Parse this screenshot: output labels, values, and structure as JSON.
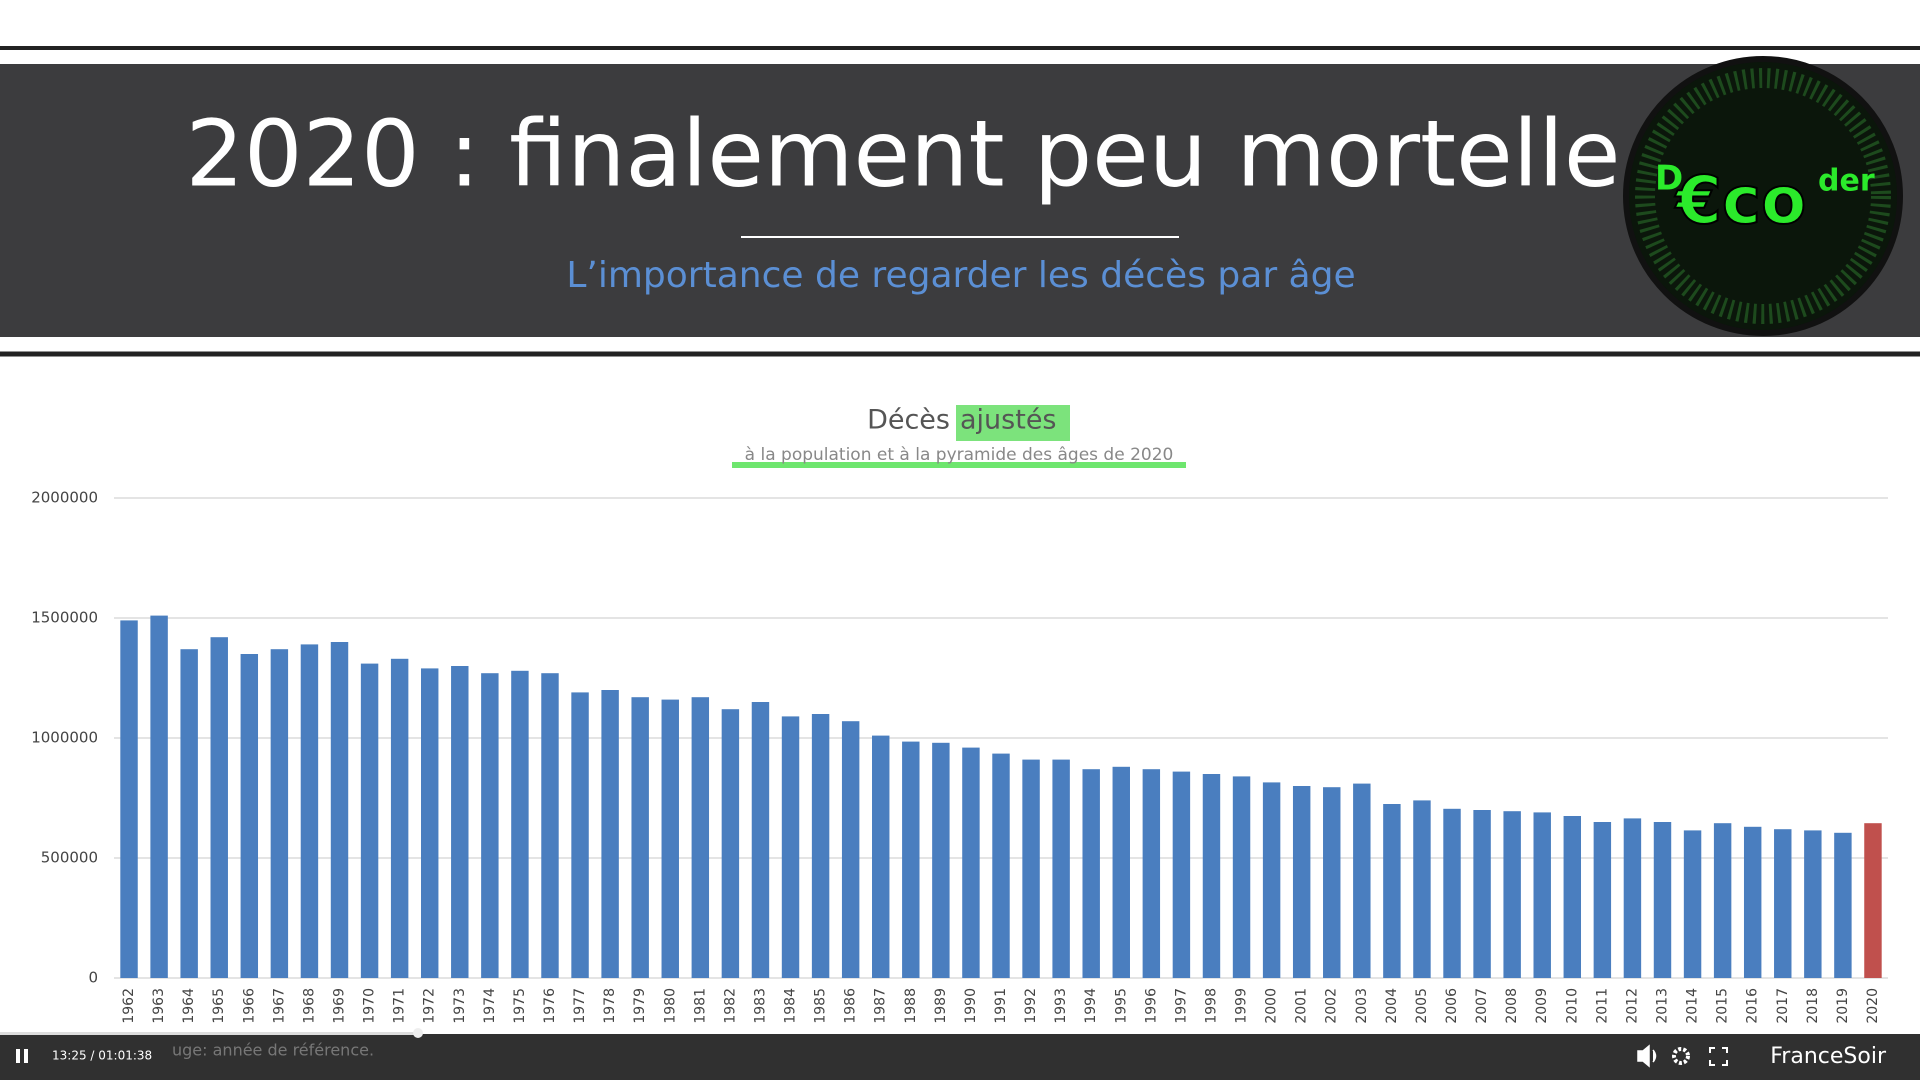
{
  "header": {
    "title": "2020 : finalement peu mortelle",
    "subtitle": "L’importance de regarder les décès par âge"
  },
  "logo": {
    "parts": [
      "D",
      "€co",
      "der"
    ]
  },
  "chart_data": {
    "type": "bar",
    "title_parts": [
      "Décès",
      "ajustés"
    ],
    "subtitle": "à la population et à la pyramide des âges de 2020",
    "footnote": "uge: année de référence.",
    "categories": [
      "1962",
      "1963",
      "1964",
      "1965",
      "1966",
      "1967",
      "1968",
      "1969",
      "1970",
      "1971",
      "1972",
      "1973",
      "1974",
      "1975",
      "1976",
      "1977",
      "1978",
      "1979",
      "1980",
      "1981",
      "1982",
      "1983",
      "1984",
      "1985",
      "1986",
      "1987",
      "1988",
      "1989",
      "1990",
      "1991",
      "1992",
      "1993",
      "1994",
      "1995",
      "1996",
      "1997",
      "1998",
      "1999",
      "2000",
      "2001",
      "2002",
      "2003",
      "2004",
      "2005",
      "2006",
      "2007",
      "2008",
      "2009",
      "2010",
      "2011",
      "2012",
      "2013",
      "2014",
      "2015",
      "2016",
      "2017",
      "2018",
      "2019",
      "2020"
    ],
    "values": [
      1490000,
      1510000,
      1370000,
      1420000,
      1350000,
      1370000,
      1390000,
      1400000,
      1310000,
      1330000,
      1290000,
      1300000,
      1270000,
      1280000,
      1270000,
      1190000,
      1200000,
      1170000,
      1160000,
      1170000,
      1120000,
      1150000,
      1090000,
      1100000,
      1070000,
      1010000,
      985000,
      980000,
      960000,
      935000,
      910000,
      910000,
      870000,
      880000,
      870000,
      860000,
      850000,
      840000,
      815000,
      800000,
      795000,
      810000,
      725000,
      740000,
      705000,
      700000,
      695000,
      690000,
      675000,
      650000,
      665000,
      650000,
      615000,
      645000,
      630000,
      620000,
      615000,
      605000,
      645000
    ],
    "colors": [
      "#4a7ebf",
      "#4a7ebf",
      "#4a7ebf",
      "#4a7ebf",
      "#4a7ebf",
      "#4a7ebf",
      "#4a7ebf",
      "#4a7ebf",
      "#4a7ebf",
      "#4a7ebf",
      "#4a7ebf",
      "#4a7ebf",
      "#4a7ebf",
      "#4a7ebf",
      "#4a7ebf",
      "#4a7ebf",
      "#4a7ebf",
      "#4a7ebf",
      "#4a7ebf",
      "#4a7ebf",
      "#4a7ebf",
      "#4a7ebf",
      "#4a7ebf",
      "#4a7ebf",
      "#4a7ebf",
      "#4a7ebf",
      "#4a7ebf",
      "#4a7ebf",
      "#4a7ebf",
      "#4a7ebf",
      "#4a7ebf",
      "#4a7ebf",
      "#4a7ebf",
      "#4a7ebf",
      "#4a7ebf",
      "#4a7ebf",
      "#4a7ebf",
      "#4a7ebf",
      "#4a7ebf",
      "#4a7ebf",
      "#4a7ebf",
      "#4a7ebf",
      "#4a7ebf",
      "#4a7ebf",
      "#4a7ebf",
      "#4a7ebf",
      "#4a7ebf",
      "#4a7ebf",
      "#4a7ebf",
      "#4a7ebf",
      "#4a7ebf",
      "#4a7ebf",
      "#4a7ebf",
      "#4a7ebf",
      "#4a7ebf",
      "#4a7ebf",
      "#4a7ebf",
      "#4a7ebf",
      "#c0504d"
    ],
    "ylim": [
      0,
      2000000
    ],
    "yticks": [
      0,
      500000,
      1000000,
      1500000,
      2000000
    ],
    "grid": true
  },
  "player": {
    "time": "13:25 / 01:01:38",
    "brand": "FranceSoir"
  }
}
